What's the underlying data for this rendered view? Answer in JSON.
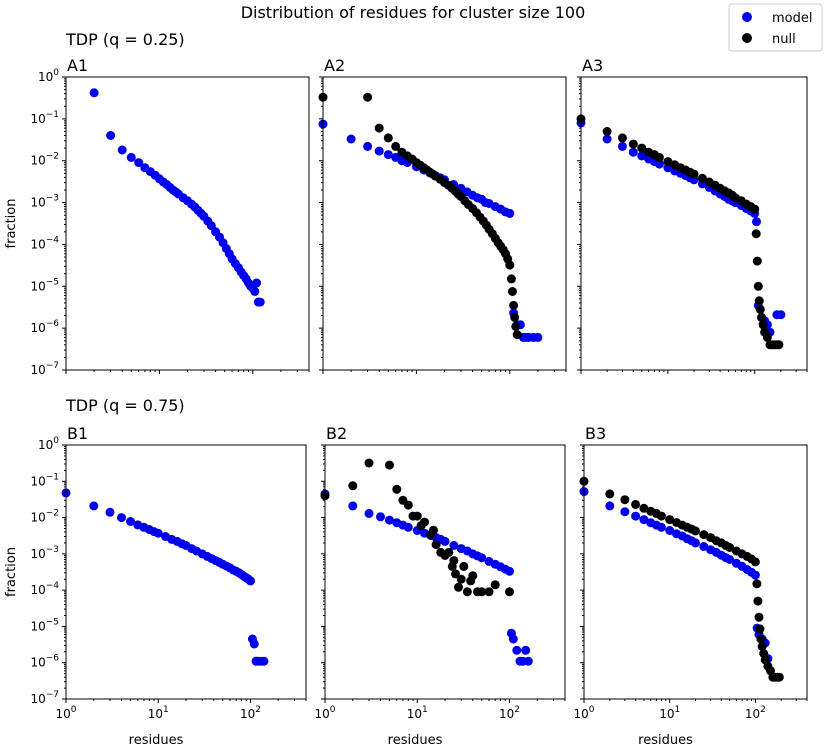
{
  "title": "Distribution of residues for cluster size 100",
  "legend": {
    "items": [
      {
        "label": "model",
        "color": "#0000ee"
      },
      {
        "label": "null",
        "color": "#000000"
      }
    ],
    "placement": "top-right"
  },
  "group_titles": [
    "TDP (q = 0.25)",
    "TDP (q = 0.75)"
  ],
  "axis_labels": {
    "x": "residues",
    "y": "fraction"
  },
  "tick_labels": {
    "x": [
      {
        "base": "10",
        "exp": "0"
      },
      {
        "base": "10",
        "exp": "1"
      },
      {
        "base": "10",
        "exp": "2"
      }
    ],
    "y": [
      {
        "base": "10",
        "exp": "0"
      },
      {
        "base": "10",
        "exp": "−1"
      },
      {
        "base": "10",
        "exp": "−2"
      },
      {
        "base": "10",
        "exp": "−3"
      },
      {
        "base": "10",
        "exp": "−4"
      },
      {
        "base": "10",
        "exp": "−5"
      },
      {
        "base": "10",
        "exp": "−6"
      },
      {
        "base": "10",
        "exp": "−7"
      }
    ]
  },
  "chart_data": [
    {
      "type": "scatter",
      "title": "A1",
      "xscale": "log",
      "yscale": "log",
      "xlim": [
        1,
        400
      ],
      "ylim": [
        1e-07,
        1
      ],
      "xlabel": "",
      "ylabel": "fraction",
      "series": [
        {
          "name": "model",
          "color": "#0000ee",
          "x": [
            2,
            3,
            4,
            5,
            6,
            7,
            8,
            9,
            10,
            11,
            12,
            13,
            14,
            15,
            16,
            18,
            20,
            22,
            24,
            26,
            28,
            30,
            33,
            36,
            40,
            44,
            48,
            52,
            56,
            60,
            65,
            70,
            75,
            80,
            85,
            90,
            95,
            100,
            105,
            110,
            115,
            120
          ],
          "y": [
            0.42,
            0.04,
            0.018,
            0.012,
            0.009,
            0.0068,
            0.0055,
            0.0045,
            0.0037,
            0.0031,
            0.0027,
            0.0023,
            0.002,
            0.0018,
            0.0016,
            0.0013,
            0.0011,
            0.00092,
            0.00078,
            0.00065,
            0.00055,
            0.00047,
            0.00036,
            0.00028,
            0.0002,
            0.00015,
            0.00011,
            8e-05,
            6e-05,
            4.5e-05,
            3.5e-05,
            2.8e-05,
            2.2e-05,
            1.8e-05,
            1.5e-05,
            1.2e-05,
            1e-05,
            9e-06,
            7.5e-06,
            1.2e-05,
            4.2e-06,
            4.2e-06
          ]
        }
      ]
    },
    {
      "type": "scatter",
      "title": "A2",
      "xscale": "log",
      "yscale": "log",
      "xlim": [
        1,
        400
      ],
      "ylim": [
        1e-07,
        1
      ],
      "xlabel": "",
      "ylabel": "",
      "series": [
        {
          "name": "model",
          "color": "#0000ee",
          "x": [
            1,
            2,
            3,
            4,
            5,
            6,
            7,
            8,
            10,
            12,
            14,
            16,
            18,
            20,
            25,
            30,
            35,
            40,
            45,
            50,
            55,
            60,
            70,
            80,
            90,
            100,
            110,
            120,
            130,
            140,
            150,
            160,
            180,
            200
          ],
          "y": [
            0.075,
            0.033,
            0.022,
            0.017,
            0.014,
            0.012,
            0.01,
            0.009,
            0.0072,
            0.006,
            0.0051,
            0.0044,
            0.0039,
            0.0035,
            0.0027,
            0.0022,
            0.0018,
            0.0015,
            0.0013,
            0.0012,
            0.001,
            0.00095,
            0.0008,
            0.0007,
            0.0006,
            0.00055,
            2.3e-06,
            1.2e-06,
            1.2e-06,
            6e-07,
            6e-07,
            6e-07,
            6e-07,
            6e-07
          ]
        },
        {
          "name": "null",
          "color": "#000000",
          "x": [
            1,
            3,
            4,
            5,
            6,
            7,
            8,
            9,
            10,
            11,
            12,
            13,
            14,
            15,
            16,
            18,
            20,
            22,
            24,
            26,
            28,
            30,
            33,
            36,
            40,
            44,
            48,
            52,
            56,
            60,
            65,
            70,
            75,
            80,
            85,
            90,
            95,
            100,
            104,
            107,
            110,
            113,
            116,
            120
          ],
          "y": [
            0.33,
            0.33,
            0.06,
            0.035,
            0.022,
            0.016,
            0.013,
            0.011,
            0.009,
            0.0078,
            0.0068,
            0.006,
            0.0053,
            0.0048,
            0.0043,
            0.0036,
            0.003,
            0.0026,
            0.0022,
            0.0019,
            0.0016,
            0.0014,
            0.0011,
            0.0009,
            0.00072,
            0.00057,
            0.00045,
            0.00036,
            0.00029,
            0.00023,
            0.00018,
            0.00014,
            0.00011,
            9e-05,
            7.5e-05,
            6e-05,
            4.5e-05,
            3.2e-05,
            1.5e-05,
            7.5e-06,
            3.5e-06,
            1.8e-06,
            1.1e-06,
            7e-07
          ]
        }
      ]
    },
    {
      "type": "scatter",
      "title": "A3",
      "xscale": "log",
      "yscale": "log",
      "xlim": [
        1,
        400
      ],
      "ylim": [
        1e-07,
        1
      ],
      "xlabel": "",
      "ylabel": "",
      "series": [
        {
          "name": "model",
          "color": "#0000ee",
          "x": [
            1,
            2,
            3,
            4,
            5,
            6,
            7,
            8,
            10,
            12,
            14,
            16,
            18,
            20,
            25,
            30,
            35,
            40,
            45,
            50,
            55,
            60,
            70,
            80,
            90,
            100,
            105,
            110,
            120,
            130,
            140,
            150,
            180,
            200
          ],
          "y": [
            0.08,
            0.033,
            0.022,
            0.016,
            0.013,
            0.011,
            0.0095,
            0.0083,
            0.0068,
            0.0057,
            0.005,
            0.0044,
            0.0039,
            0.0035,
            0.0028,
            0.0023,
            0.0019,
            0.0016,
            0.0014,
            0.0012,
            0.0011,
            0.001,
            0.00085,
            0.00072,
            0.00063,
            0.00055,
            0.00035,
            3.5e-06,
            1.8e-06,
            1.5e-06,
            1.2e-06,
            8e-07,
            2.1e-06,
            2.1e-06
          ]
        },
        {
          "name": "null",
          "color": "#000000",
          "x": [
            1,
            2,
            3,
            4,
            5,
            6,
            7,
            8,
            10,
            12,
            14,
            16,
            18,
            20,
            25,
            30,
            35,
            40,
            45,
            50,
            55,
            60,
            70,
            80,
            90,
            100,
            104,
            107,
            110,
            113,
            116,
            120,
            125,
            130,
            140,
            150,
            160,
            170,
            180,
            190
          ],
          "y": [
            0.1,
            0.05,
            0.035,
            0.025,
            0.02,
            0.016,
            0.014,
            0.012,
            0.0095,
            0.008,
            0.0068,
            0.006,
            0.0053,
            0.0048,
            0.0038,
            0.0031,
            0.0026,
            0.0022,
            0.0019,
            0.0017,
            0.0015,
            0.0013,
            0.0011,
            0.00092,
            0.0008,
            0.0007,
            0.00018,
            4e-05,
            1e-05,
            4.5e-06,
            2.8e-06,
            1.8e-06,
            1.2e-06,
            8e-07,
            6e-07,
            4e-07,
            4e-07,
            4e-07,
            4e-07,
            4e-07
          ]
        }
      ]
    },
    {
      "type": "scatter",
      "title": "B1",
      "xscale": "log",
      "yscale": "log",
      "xlim": [
        1,
        400
      ],
      "ylim": [
        1e-07,
        1
      ],
      "xlabel": "residues",
      "ylabel": "fraction",
      "series": [
        {
          "name": "model",
          "color": "#0000ee",
          "x": [
            1,
            2,
            3,
            4,
            5,
            6,
            7,
            8,
            9,
            10,
            12,
            14,
            16,
            18,
            20,
            23,
            26,
            30,
            34,
            38,
            42,
            46,
            50,
            55,
            60,
            65,
            70,
            75,
            80,
            85,
            90,
            95,
            100,
            105,
            110,
            115,
            120,
            130,
            140
          ],
          "y": [
            0.048,
            0.021,
            0.014,
            0.01,
            0.0078,
            0.0063,
            0.0054,
            0.0047,
            0.0041,
            0.0037,
            0.003,
            0.0025,
            0.0022,
            0.0019,
            0.0017,
            0.0014,
            0.0012,
            0.001,
            0.00085,
            0.00074,
            0.00065,
            0.00058,
            0.00052,
            0.00046,
            0.00041,
            0.00036,
            0.00033,
            0.0003,
            0.00027,
            0.00024,
            0.00022,
            0.0002,
            0.00018,
            4.5e-06,
            3.3e-06,
            1.1e-06,
            1.1e-06,
            1.1e-06,
            1.1e-06
          ]
        }
      ]
    },
    {
      "type": "scatter",
      "title": "B2",
      "xscale": "log",
      "yscale": "log",
      "xlim": [
        1,
        400
      ],
      "ylim": [
        1e-07,
        1
      ],
      "xlabel": "residues",
      "ylabel": "",
      "series": [
        {
          "name": "model",
          "color": "#0000ee",
          "x": [
            1,
            2,
            3,
            4,
            5,
            6,
            7,
            8,
            10,
            12,
            14,
            16,
            18,
            20,
            25,
            30,
            35,
            40,
            45,
            50,
            60,
            70,
            80,
            90,
            100,
            105,
            110,
            120,
            130,
            140,
            150,
            160
          ],
          "y": [
            0.045,
            0.021,
            0.013,
            0.0105,
            0.0085,
            0.0072,
            0.0062,
            0.0054,
            0.0044,
            0.0037,
            0.0032,
            0.0028,
            0.0025,
            0.0022,
            0.0017,
            0.0014,
            0.0012,
            0.001,
            0.00088,
            0.00078,
            0.00062,
            0.00052,
            0.00044,
            0.00038,
            0.00033,
            6.5e-06,
            4.5e-06,
            2.2e-06,
            1.1e-06,
            1.1e-06,
            2.2e-06,
            1.1e-06
          ]
        },
        {
          "name": "null",
          "color": "#000000",
          "x": [
            1,
            2,
            3,
            5,
            6,
            7,
            8,
            9,
            10,
            11,
            12,
            14,
            15,
            16,
            18,
            20,
            22,
            24,
            25,
            26,
            28,
            30,
            32,
            35,
            38,
            40,
            45,
            50,
            60,
            70,
            100
          ],
          "y": [
            0.04,
            0.075,
            0.32,
            0.28,
            0.06,
            0.03,
            0.022,
            0.011,
            0.011,
            0.006,
            0.0075,
            0.0034,
            0.0045,
            0.0018,
            0.0011,
            0.0009,
            0.0011,
            0.00045,
            0.00065,
            0.00028,
            0.00012,
            0.0002,
            0.00045,
            9e-05,
            0.00018,
            0.00025,
            9e-05,
            9e-05,
            9e-05,
            0.00014,
            9e-05
          ]
        }
      ]
    },
    {
      "type": "scatter",
      "title": "B3",
      "xscale": "log",
      "yscale": "log",
      "xlim": [
        1,
        400
      ],
      "ylim": [
        1e-07,
        1
      ],
      "xlabel": "residues",
      "ylabel": "",
      "series": [
        {
          "name": "model",
          "color": "#0000ee",
          "x": [
            1,
            2,
            3,
            4,
            5,
            6,
            7,
            8,
            10,
            12,
            14,
            16,
            18,
            20,
            25,
            30,
            35,
            40,
            45,
            50,
            60,
            70,
            80,
            90,
            100,
            105,
            110,
            120,
            130,
            140
          ],
          "y": [
            0.052,
            0.021,
            0.0145,
            0.011,
            0.0088,
            0.0072,
            0.0062,
            0.0054,
            0.0044,
            0.0036,
            0.0031,
            0.0026,
            0.0023,
            0.002,
            0.0016,
            0.0013,
            0.0011,
            0.00092,
            0.00079,
            0.0007,
            0.00055,
            0.00045,
            0.00037,
            0.00031,
            0.00026,
            9e-06,
            6e-06,
            4.5e-06,
            3.5e-06,
            1.3e-06
          ]
        },
        {
          "name": "null",
          "color": "#000000",
          "x": [
            1,
            2,
            3,
            4,
            5,
            6,
            7,
            8,
            10,
            12,
            14,
            16,
            18,
            20,
            25,
            30,
            35,
            40,
            45,
            50,
            60,
            70,
            80,
            90,
            100,
            104,
            107,
            110,
            113,
            116,
            120,
            125,
            130,
            140,
            150,
            160,
            170,
            180,
            190
          ],
          "y": [
            0.1,
            0.045,
            0.031,
            0.023,
            0.018,
            0.015,
            0.013,
            0.011,
            0.0088,
            0.0073,
            0.0062,
            0.0054,
            0.0048,
            0.0043,
            0.0034,
            0.0028,
            0.0023,
            0.002,
            0.0017,
            0.0015,
            0.0012,
            0.001,
            0.00085,
            0.00072,
            0.0006,
            0.00015,
            5e-05,
            1.8e-05,
            8.5e-06,
            4.5e-06,
            2.8e-06,
            1.8e-06,
            1.2e-06,
            8e-07,
            6e-07,
            4e-07,
            4e-07,
            4e-07,
            4e-07
          ]
        }
      ]
    }
  ]
}
